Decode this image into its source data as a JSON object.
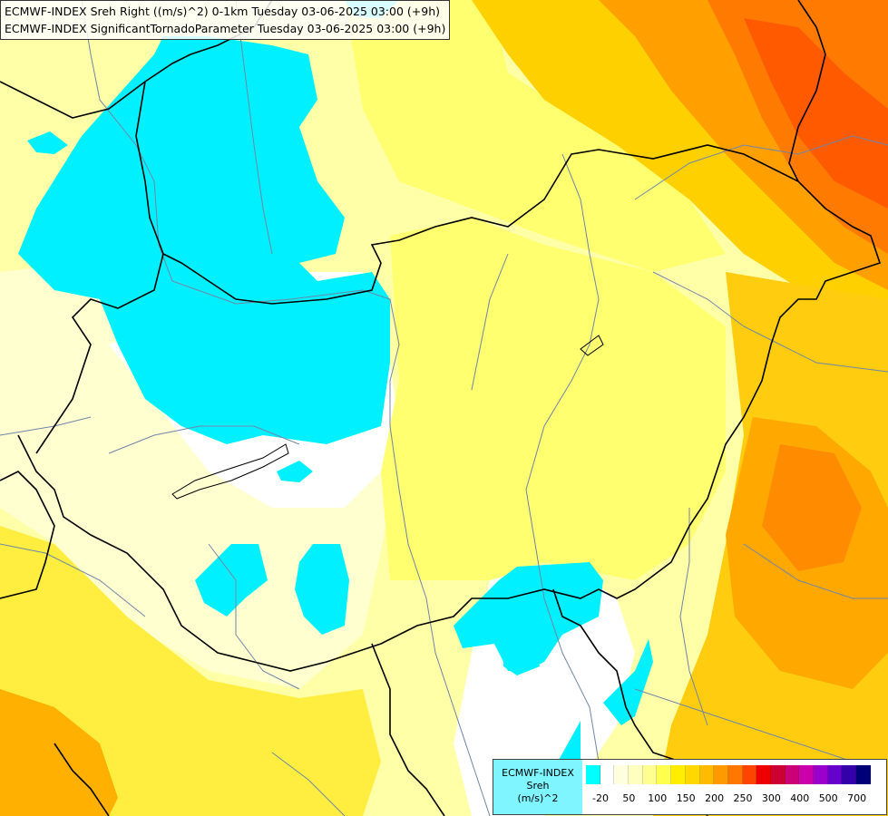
{
  "header": {
    "line1": "ECMWF-INDEX Sreh Right ((m/s)^2) 0-1km Tuesday 03-06-2025 03:00 (+9h)",
    "line2": "ECMWF-INDEX SignificantTornadoParameter Tuesday 03-06-2025 03:00 (+9h)"
  },
  "legend": {
    "line1": "ECMWF-INDEX",
    "line2": "Sreh",
    "line3": "(m/s)^2",
    "swatch_colors": [
      "#00ffff",
      "#ffffff",
      "#ffffe0",
      "#ffffc0",
      "#ffff90",
      "#ffff50",
      "#ffee00",
      "#ffd800",
      "#ffbb00",
      "#ff9900",
      "#ff7700",
      "#ff4400",
      "#ee0000",
      "#cc0033",
      "#cc0077",
      "#cc00aa",
      "#9900cc",
      "#6600cc",
      "#3300aa",
      "#000077"
    ],
    "tick_labels": [
      "-20",
      "50",
      "100",
      "150",
      "200",
      "250",
      "300",
      "400",
      "500",
      "700"
    ]
  },
  "palette": {
    "low_cyan": "#00f0ff",
    "white": "#ffffff",
    "pale_yellow": "#ffffc0",
    "yellow": "#ffff60",
    "gold": "#ffd000",
    "orange": "#ff9a00",
    "dark_orange": "#ff6a00",
    "border": "#000000",
    "river": "#6a7fa0"
  }
}
